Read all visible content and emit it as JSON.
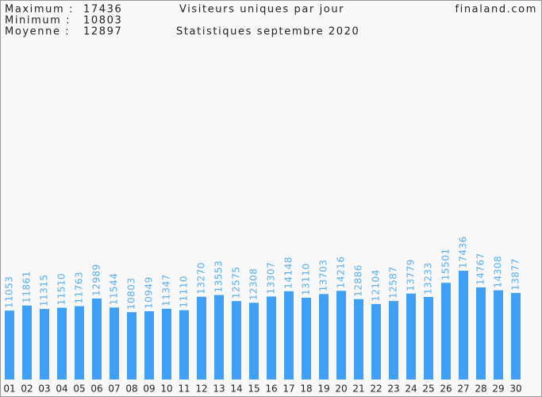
{
  "chart_data": {
    "type": "bar",
    "title": "Visiteurs uniques par jour",
    "subtitle": "Statistiques septembre 2020",
    "site": "finaland.com",
    "stats": [
      {
        "label": "Maximum :",
        "value": 17436
      },
      {
        "label": "Minimum :",
        "value": 10803
      },
      {
        "label": "Moyenne :",
        "value": 12897
      }
    ],
    "categories": [
      "01",
      "02",
      "03",
      "04",
      "05",
      "06",
      "07",
      "08",
      "09",
      "10",
      "11",
      "12",
      "13",
      "14",
      "15",
      "16",
      "17",
      "18",
      "19",
      "20",
      "21",
      "22",
      "23",
      "24",
      "25",
      "26",
      "27",
      "28",
      "29",
      "30"
    ],
    "values": [
      11053,
      11861,
      11315,
      11510,
      11763,
      12989,
      11544,
      10803,
      10949,
      11347,
      11110,
      13270,
      13553,
      12575,
      12308,
      13307,
      14148,
      13110,
      13703,
      14216,
      12886,
      12104,
      12587,
      13779,
      13233,
      15501,
      17436,
      14767,
      14308,
      13877
    ],
    "color": "#3fa0f5"
  }
}
